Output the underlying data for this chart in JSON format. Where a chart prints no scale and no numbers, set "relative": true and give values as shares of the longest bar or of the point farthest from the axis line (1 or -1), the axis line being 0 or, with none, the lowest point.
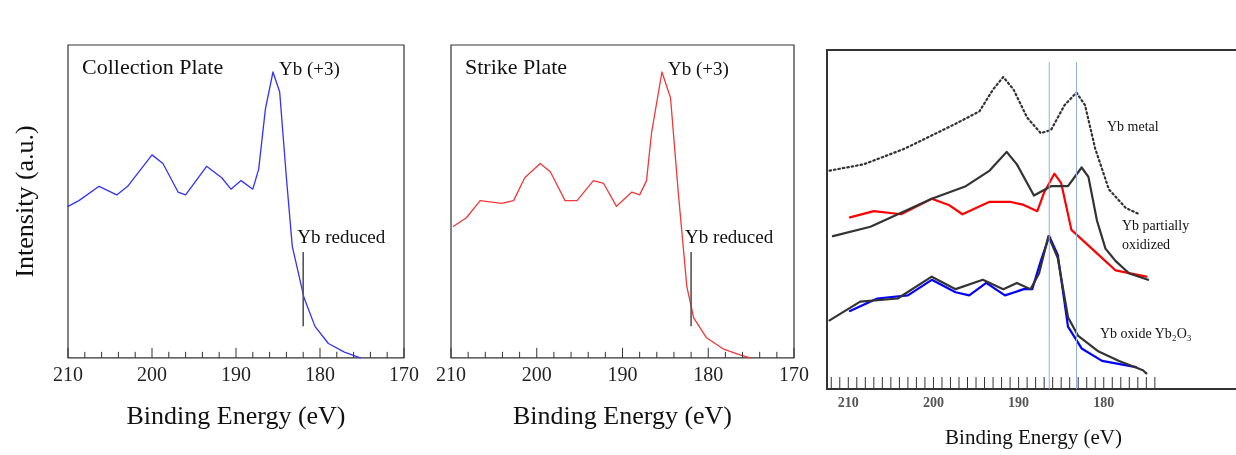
{
  "chart_data": [
    {
      "type": "line",
      "title": "Collection Plate",
      "xlabel": "Binding Energy (eV)",
      "ylabel": "Intensity (a.u.)",
      "relative": true,
      "marker": "none",
      "xlim": [
        210,
        170
      ],
      "xticks": [
        210,
        {
          "value": 208,
          "label": null
        },
        {
          "value": 206,
          "label": null
        },
        {
          "value": 204,
          "label": null
        },
        {
          "value": 202,
          "label": null
        },
        200,
        {
          "value": 198,
          "label": null
        },
        {
          "value": 196,
          "label": null
        },
        {
          "value": 194,
          "label": null
        },
        {
          "value": 192,
          "label": null
        },
        190,
        {
          "value": 188,
          "label": null
        },
        {
          "value": 186,
          "label": null
        },
        {
          "value": 184,
          "label": null
        },
        {
          "value": 182,
          "label": null
        },
        180,
        {
          "value": 178,
          "label": null
        },
        {
          "value": 176,
          "label": null
        },
        {
          "value": 174,
          "label": null
        },
        {
          "value": 172,
          "label": null
        },
        170
      ],
      "series": [
        {
          "color": "#3333f5",
          "x": [
            210,
            208.7,
            206.3,
            204.2,
            202.9,
            200,
            198.7,
            196.9,
            196,
            193.5,
            191.7,
            190.6,
            189.4,
            188,
            187.3,
            186.5,
            185.6,
            184.8,
            184,
            183.3,
            181.9,
            180.6,
            179,
            177.1,
            175.2
          ],
          "values": [
            0.53,
            0.55,
            0.6,
            0.57,
            0.6,
            0.71,
            0.68,
            0.58,
            0.57,
            0.67,
            0.63,
            0.59,
            0.62,
            0.59,
            0.66,
            0.87,
            1,
            0.93,
            0.63,
            0.39,
            0.21,
            0.11,
            0.05,
            0.02,
            0
          ]
        }
      ],
      "ref_lines": [
        {
          "axis": "x",
          "value": 182,
          "label": "Yb reduced"
        }
      ],
      "annotations": [
        {
          "text": "Yb (+3)",
          "x": 185.6,
          "y": 1
        }
      ]
    },
    {
      "type": "line",
      "title": "Strike Plate",
      "xlabel": "Binding Energy (eV)",
      "relative": true,
      "marker": "none",
      "xlim": [
        210,
        170
      ],
      "xticks": [
        210,
        {
          "value": 208,
          "label": null
        },
        {
          "value": 206,
          "label": null
        },
        {
          "value": 204,
          "label": null
        },
        {
          "value": 202,
          "label": null
        },
        200,
        {
          "value": 198,
          "label": null
        },
        {
          "value": 196,
          "label": null
        },
        {
          "value": 194,
          "label": null
        },
        {
          "value": 192,
          "label": null
        },
        190,
        {
          "value": 188,
          "label": null
        },
        {
          "value": 186,
          "label": null
        },
        {
          "value": 184,
          "label": null
        },
        {
          "value": 182,
          "label": null
        },
        180,
        {
          "value": 178,
          "label": null
        },
        {
          "value": 176,
          "label": null
        },
        {
          "value": 174,
          "label": null
        },
        {
          "value": 172,
          "label": null
        },
        170
      ],
      "series": [
        {
          "color": "#ee3a3a",
          "x": [
            209.7,
            208.2,
            206.6,
            204.1,
            202.7,
            201.4,
            199.6,
            198.4,
            196.7,
            195.3,
            193.4,
            192.2,
            190.7,
            188.9,
            188,
            187.2,
            186.6,
            185.4,
            184.4,
            183.5,
            182.5,
            181.7,
            180.2,
            178.2,
            176.3,
            175.1
          ],
          "values": [
            0.46,
            0.49,
            0.55,
            0.54,
            0.55,
            0.63,
            0.68,
            0.65,
            0.55,
            0.55,
            0.62,
            0.61,
            0.53,
            0.58,
            0.57,
            0.62,
            0.79,
            1,
            0.91,
            0.58,
            0.25,
            0.14,
            0.07,
            0.03,
            0.01,
            0
          ]
        }
      ],
      "ref_lines": [
        {
          "axis": "x",
          "value": 182,
          "label": "Yb reduced"
        }
      ],
      "annotations": [
        {
          "text": "Yb (+3)",
          "x": 185.4,
          "y": 1
        }
      ]
    },
    {
      "type": "line",
      "xlabel": "Binding Energy (eV)",
      "relative": true,
      "marker": "none",
      "xlim": [
        212.5,
        164
      ],
      "xticks": [
        {
          "value": 212,
          "label": null
        },
        {
          "value": 211,
          "label": null
        },
        210,
        {
          "value": 209,
          "label": null
        },
        {
          "value": 208,
          "label": null
        },
        {
          "value": 207,
          "label": null
        },
        {
          "value": 206,
          "label": null
        },
        {
          "value": 205,
          "label": null
        },
        {
          "value": 204,
          "label": null
        },
        {
          "value": 203,
          "label": null
        },
        {
          "value": 202,
          "label": null
        },
        {
          "value": 201,
          "label": null
        },
        200,
        {
          "value": 199,
          "label": null
        },
        {
          "value": 198,
          "label": null
        },
        {
          "value": 197,
          "label": null
        },
        {
          "value": 196,
          "label": null
        },
        {
          "value": 195,
          "label": null
        },
        {
          "value": 194,
          "label": null
        },
        {
          "value": 193,
          "label": null
        },
        {
          "value": 192,
          "label": null
        },
        {
          "value": 191,
          "label": null
        },
        190,
        {
          "value": 189,
          "label": null
        },
        {
          "value": 188,
          "label": null
        },
        {
          "value": 187,
          "label": null
        },
        {
          "value": 186,
          "label": null
        },
        {
          "value": 185,
          "label": null
        },
        {
          "value": 184,
          "label": null
        },
        {
          "value": 183,
          "label": null
        },
        {
          "value": 182,
          "label": null
        },
        {
          "value": 181,
          "label": null
        },
        180,
        {
          "value": 179,
          "label": null
        },
        {
          "value": 178,
          "label": null
        },
        {
          "value": 177,
          "label": null
        },
        {
          "value": 176,
          "label": null
        },
        {
          "value": 175,
          "label": null
        },
        {
          "value": 174,
          "label": null
        }
      ],
      "series": [
        {
          "color": "#333333",
          "line_style": "dotted",
          "x": [
            212.2,
            208.2,
            203.4,
            197.4,
            194.6,
            193,
            191.8,
            190.6,
            189,
            187.4,
            186.2,
            184.6,
            183.2,
            182.2,
            181,
            179.4,
            177.4,
            175.8
          ],
          "values": [
            0.7,
            0.72,
            0.77,
            0.85,
            0.89,
            0.96,
            1,
            0.96,
            0.87,
            0.82,
            0.83,
            0.91,
            0.95,
            0.91,
            0.77,
            0.64,
            0.58,
            0.56
          ]
        },
        {
          "color": "#333333",
          "x": [
            211.8,
            207.4,
            203.4,
            200.2,
            196.2,
            193.4,
            191.4,
            190.2,
            188.2,
            186.2,
            184.2,
            182.6,
            181.8,
            180.8,
            179.8,
            178.6,
            177,
            174.8
          ],
          "values": [
            0.49,
            0.52,
            0.57,
            0.61,
            0.65,
            0.7,
            0.76,
            0.72,
            0.62,
            0.65,
            0.65,
            0.71,
            0.68,
            0.54,
            0.45,
            0.41,
            0.37,
            0.35
          ]
        },
        {
          "color": "#ff0000",
          "x": [
            209.8,
            207,
            203.8,
            200.2,
            198.2,
            196.6,
            193.4,
            191,
            189.4,
            187.8,
            187,
            185.8,
            185,
            183.8,
            182.2,
            180.6,
            178.6,
            175
          ],
          "values": [
            0.55,
            0.57,
            0.56,
            0.61,
            0.59,
            0.56,
            0.6,
            0.6,
            0.59,
            0.57,
            0.63,
            0.69,
            0.66,
            0.51,
            0.47,
            0.43,
            0.38,
            0.36
          ]
        },
        {
          "color": "#333333",
          "x": [
            212.2,
            208.6,
            204.2,
            200.2,
            197.4,
            194.2,
            191.8,
            190.2,
            188.6,
            187.6,
            186.5,
            185.4,
            184.2,
            183,
            180.6,
            178.2,
            175.4,
            175
          ],
          "values": [
            0.22,
            0.28,
            0.29,
            0.36,
            0.32,
            0.35,
            0.32,
            0.34,
            0.32,
            0.37,
            0.49,
            0.42,
            0.23,
            0.17,
            0.12,
            0.09,
            0.06,
            0.05
          ]
        },
        {
          "color": "#0000ff",
          "x": [
            209.8,
            206.6,
            203,
            200.2,
            197.4,
            195.8,
            193.8,
            191.6,
            189.4,
            188.4,
            187.4,
            186.4,
            185.4,
            184.2,
            182.6,
            180.2,
            176.2
          ],
          "values": [
            0.25,
            0.29,
            0.3,
            0.35,
            0.31,
            0.3,
            0.34,
            0.3,
            0.32,
            0.32,
            0.41,
            0.49,
            0.43,
            0.2,
            0.13,
            0.09,
            0.07
          ]
        }
      ],
      "ref_lines": [
        {
          "axis": "x",
          "value": 186.4,
          "color": "#8fb0e0"
        },
        {
          "axis": "x",
          "value": 183.2,
          "color": "#8fb0e0"
        }
      ],
      "annotations": [
        "Yb metal",
        "Yb partially oxidized",
        "Yb oxide Yb₂O₃"
      ]
    }
  ]
}
